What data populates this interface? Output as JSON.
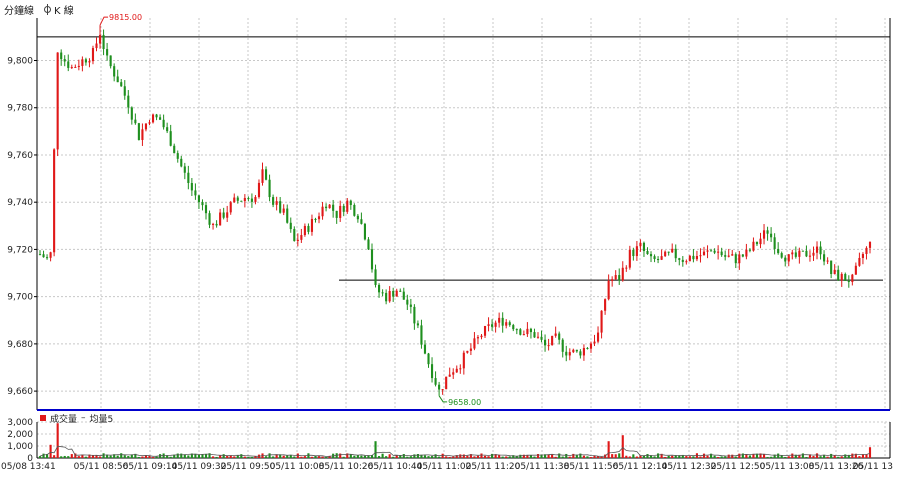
{
  "topbar": {
    "tab_minute": "分鐘線",
    "tab_kline": "K 線"
  },
  "volume_legend": {
    "label": "成交量",
    "separator": "–",
    "ma_label": "均量5"
  },
  "colors": {
    "up": "#e01818",
    "down": "#1e8f1e",
    "grid": "#c8c8c8",
    "divider": "#0000cc",
    "hline": "#000000",
    "ma": "#555555"
  },
  "chart_data": {
    "type": "candlestick",
    "title": "",
    "xlabel": "",
    "ylabel": "",
    "ylim": [
      9652,
      9818
    ],
    "y_ticks": [
      "9,800",
      "9,780",
      "9,760",
      "9,740",
      "9,720",
      "9,700",
      "9,680",
      "9,660"
    ],
    "y_tick_values": [
      9800,
      9780,
      9760,
      9740,
      9720,
      9700,
      9680,
      9660
    ],
    "x_ticks": [
      "05/08 13:41",
      "05/11 08:56",
      "05/11 09:14",
      "05/11 09:32",
      "05/11 09:50",
      "05/11 10:08",
      "05/11 10:26",
      "05/11 10:44",
      "05/11 11:02",
      "05/11 11:20",
      "05/11 11:38",
      "05/11 11:56",
      "05/11 12:14",
      "05/11 12:32",
      "05/11 12:50",
      "05/11 13:08",
      "05/11 13:26",
      "05/11 13"
    ],
    "annotations": [
      {
        "text": "9815.00",
        "value": 9815,
        "kind": "high"
      },
      {
        "text": "9658.00",
        "value": 9658,
        "kind": "low"
      }
    ],
    "horizontal_lines": [
      9810,
      9707
    ],
    "volume": {
      "ylim": [
        0,
        3000
      ],
      "y_ticks": [
        "3,000",
        "2,000",
        "1,000",
        "0"
      ],
      "y_tick_values": [
        3000,
        2000,
        1000,
        0
      ]
    },
    "anchors": [
      [
        0,
        9718
      ],
      [
        2,
        9716
      ],
      [
        3,
        9718
      ],
      [
        5,
        9805
      ],
      [
        7,
        9800
      ],
      [
        9,
        9797
      ],
      [
        12,
        9800
      ],
      [
        15,
        9803
      ],
      [
        17,
        9812
      ],
      [
        19,
        9800
      ],
      [
        22,
        9792
      ],
      [
        25,
        9782
      ],
      [
        28,
        9768
      ],
      [
        31,
        9776
      ],
      [
        34,
        9775
      ],
      [
        37,
        9766
      ],
      [
        40,
        9755
      ],
      [
        43,
        9745
      ],
      [
        46,
        9738
      ],
      [
        49,
        9730
      ],
      [
        52,
        9735
      ],
      [
        55,
        9740
      ],
      [
        58,
        9742
      ],
      [
        61,
        9742
      ],
      [
        63,
        9752
      ],
      [
        66,
        9740
      ],
      [
        69,
        9735
      ],
      [
        72,
        9723
      ],
      [
        75,
        9728
      ],
      [
        78,
        9733
      ],
      [
        81,
        9740
      ],
      [
        84,
        9735
      ],
      [
        87,
        9740
      ],
      [
        90,
        9735
      ],
      [
        93,
        9722
      ],
      [
        95,
        9703
      ],
      [
        98,
        9700
      ],
      [
        101,
        9703
      ],
      [
        104,
        9697
      ],
      [
        107,
        9686
      ],
      [
        110,
        9672
      ],
      [
        113,
        9660
      ],
      [
        116,
        9668
      ],
      [
        119,
        9672
      ],
      [
        122,
        9678
      ],
      [
        125,
        9684
      ],
      [
        128,
        9688
      ],
      [
        131,
        9690
      ],
      [
        134,
        9688
      ],
      [
        137,
        9685
      ],
      [
        140,
        9684
      ],
      [
        143,
        9679
      ],
      [
        146,
        9682
      ],
      [
        149,
        9677
      ],
      [
        152,
        9676
      ],
      [
        155,
        9679
      ],
      [
        158,
        9684
      ],
      [
        161,
        9707
      ],
      [
        164,
        9708
      ],
      [
        167,
        9718
      ],
      [
        170,
        9721
      ],
      [
        173,
        9715
      ],
      [
        176,
        9716
      ],
      [
        179,
        9718
      ],
      [
        182,
        9716
      ],
      [
        185,
        9717
      ],
      [
        188,
        9718
      ],
      [
        191,
        9720
      ],
      [
        194,
        9717
      ],
      [
        197,
        9716
      ],
      [
        200,
        9718
      ],
      [
        203,
        9723
      ],
      [
        206,
        9728
      ],
      [
        209,
        9720
      ],
      [
        212,
        9716
      ],
      [
        215,
        9717
      ],
      [
        218,
        9719
      ],
      [
        221,
        9720
      ],
      [
        224,
        9710
      ],
      [
        227,
        9708
      ],
      [
        230,
        9707
      ],
      [
        233,
        9718
      ],
      [
        235,
        9722
      ]
    ]
  }
}
